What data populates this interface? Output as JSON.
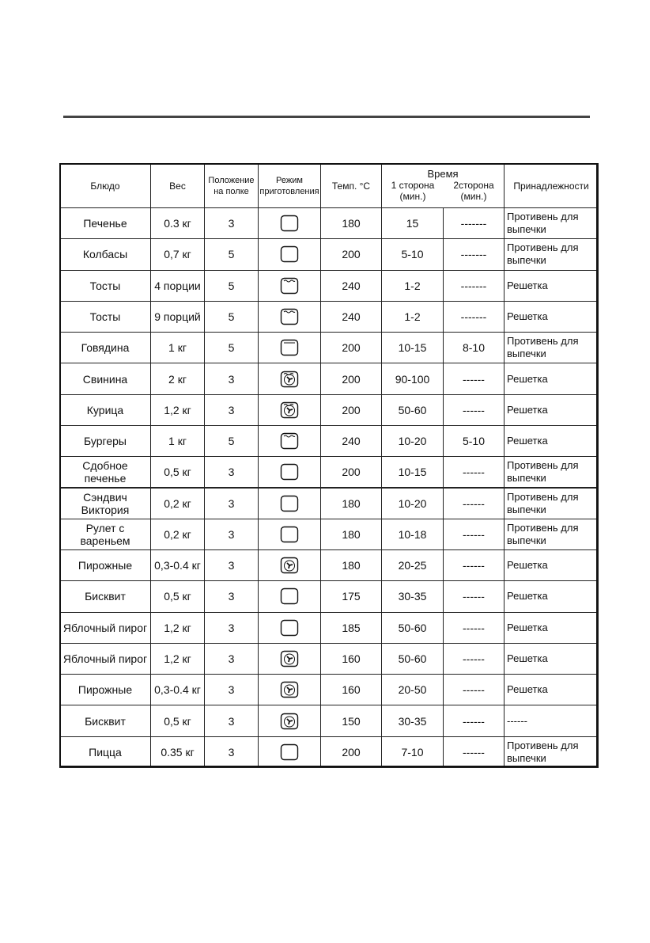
{
  "table": {
    "header": {
      "dish": "Блюдо",
      "weight": "Вес",
      "shelf": "Положение на полке",
      "mode": "Режим приготовления",
      "temp": "Темп. °C",
      "time": "Время",
      "side1": "1 сторона (мин.)",
      "side2": "2сторона (мин.)",
      "accessories": "Принадлежности"
    },
    "rows": [
      [
        "Печенье",
        "0.3 кг",
        "3",
        "180",
        "15",
        "-------",
        "Противень для выпечки"
      ],
      [
        "Колбасы",
        "0,7 кг",
        "5",
        "200",
        "5-10",
        "-------",
        "Противень для выпечки"
      ],
      [
        "Тосты",
        "4 порции",
        "5",
        "240",
        "1-2",
        "-------",
        "Решетка"
      ],
      [
        "Тосты",
        "9 порций",
        "5",
        "240",
        "1-2",
        "-------",
        "Решетка"
      ],
      [
        "Говядина",
        "1 кг",
        "5",
        "200",
        "10-15",
        "8-10",
        "Противень для выпечки"
      ],
      [
        "Свинина",
        "2 кг",
        "3",
        "200",
        "90-100",
        "------",
        "Решетка"
      ],
      [
        "Курица",
        "1,2 кг",
        "3",
        "200",
        "50-60",
        "------",
        "Решетка"
      ],
      [
        "Бургеры",
        "1 кг",
        "5",
        "240",
        "10-20",
        "5-10",
        "Решетка"
      ],
      [
        "Сдобное печенье",
        "0,5 кг",
        "3",
        "200",
        "10-15",
        "------",
        "Противень для выпечки"
      ],
      [
        "Сэндвич Виктория",
        "0,2 кг",
        "3",
        "180",
        "10-20",
        "------",
        "Противень для выпечки"
      ],
      [
        "Рулет с вареньем",
        "0,2 кг",
        "3",
        "180",
        "10-18",
        "------",
        "Противень для выпечки"
      ],
      [
        "Пирожные",
        "0,3-0.4 кг",
        "3",
        "180",
        "20-25",
        "------",
        "Решетка"
      ],
      [
        "Бисквит",
        "0,5 кг",
        "3",
        "175",
        "30-35",
        "------",
        "Решетка"
      ],
      [
        "Яблочный пирог",
        "1,2 кг",
        "3",
        "185",
        "50-60",
        "------",
        "Решетка"
      ],
      [
        "Яблочный пирог",
        "1,2 кг",
        "3",
        "160",
        "50-60",
        "------",
        "Решетка"
      ],
      [
        "Пирожные",
        "0,3-0.4 кг",
        "3",
        "160",
        "20-50",
        "------",
        "Решетка"
      ],
      [
        "Бисквит",
        "0,5 кг",
        "3",
        "150",
        "30-35",
        "------",
        "------"
      ],
      [
        "Пицца",
        "0.35 кг",
        "3",
        "200",
        "7-10",
        "------",
        "Противень для выпечки"
      ]
    ]
  }
}
